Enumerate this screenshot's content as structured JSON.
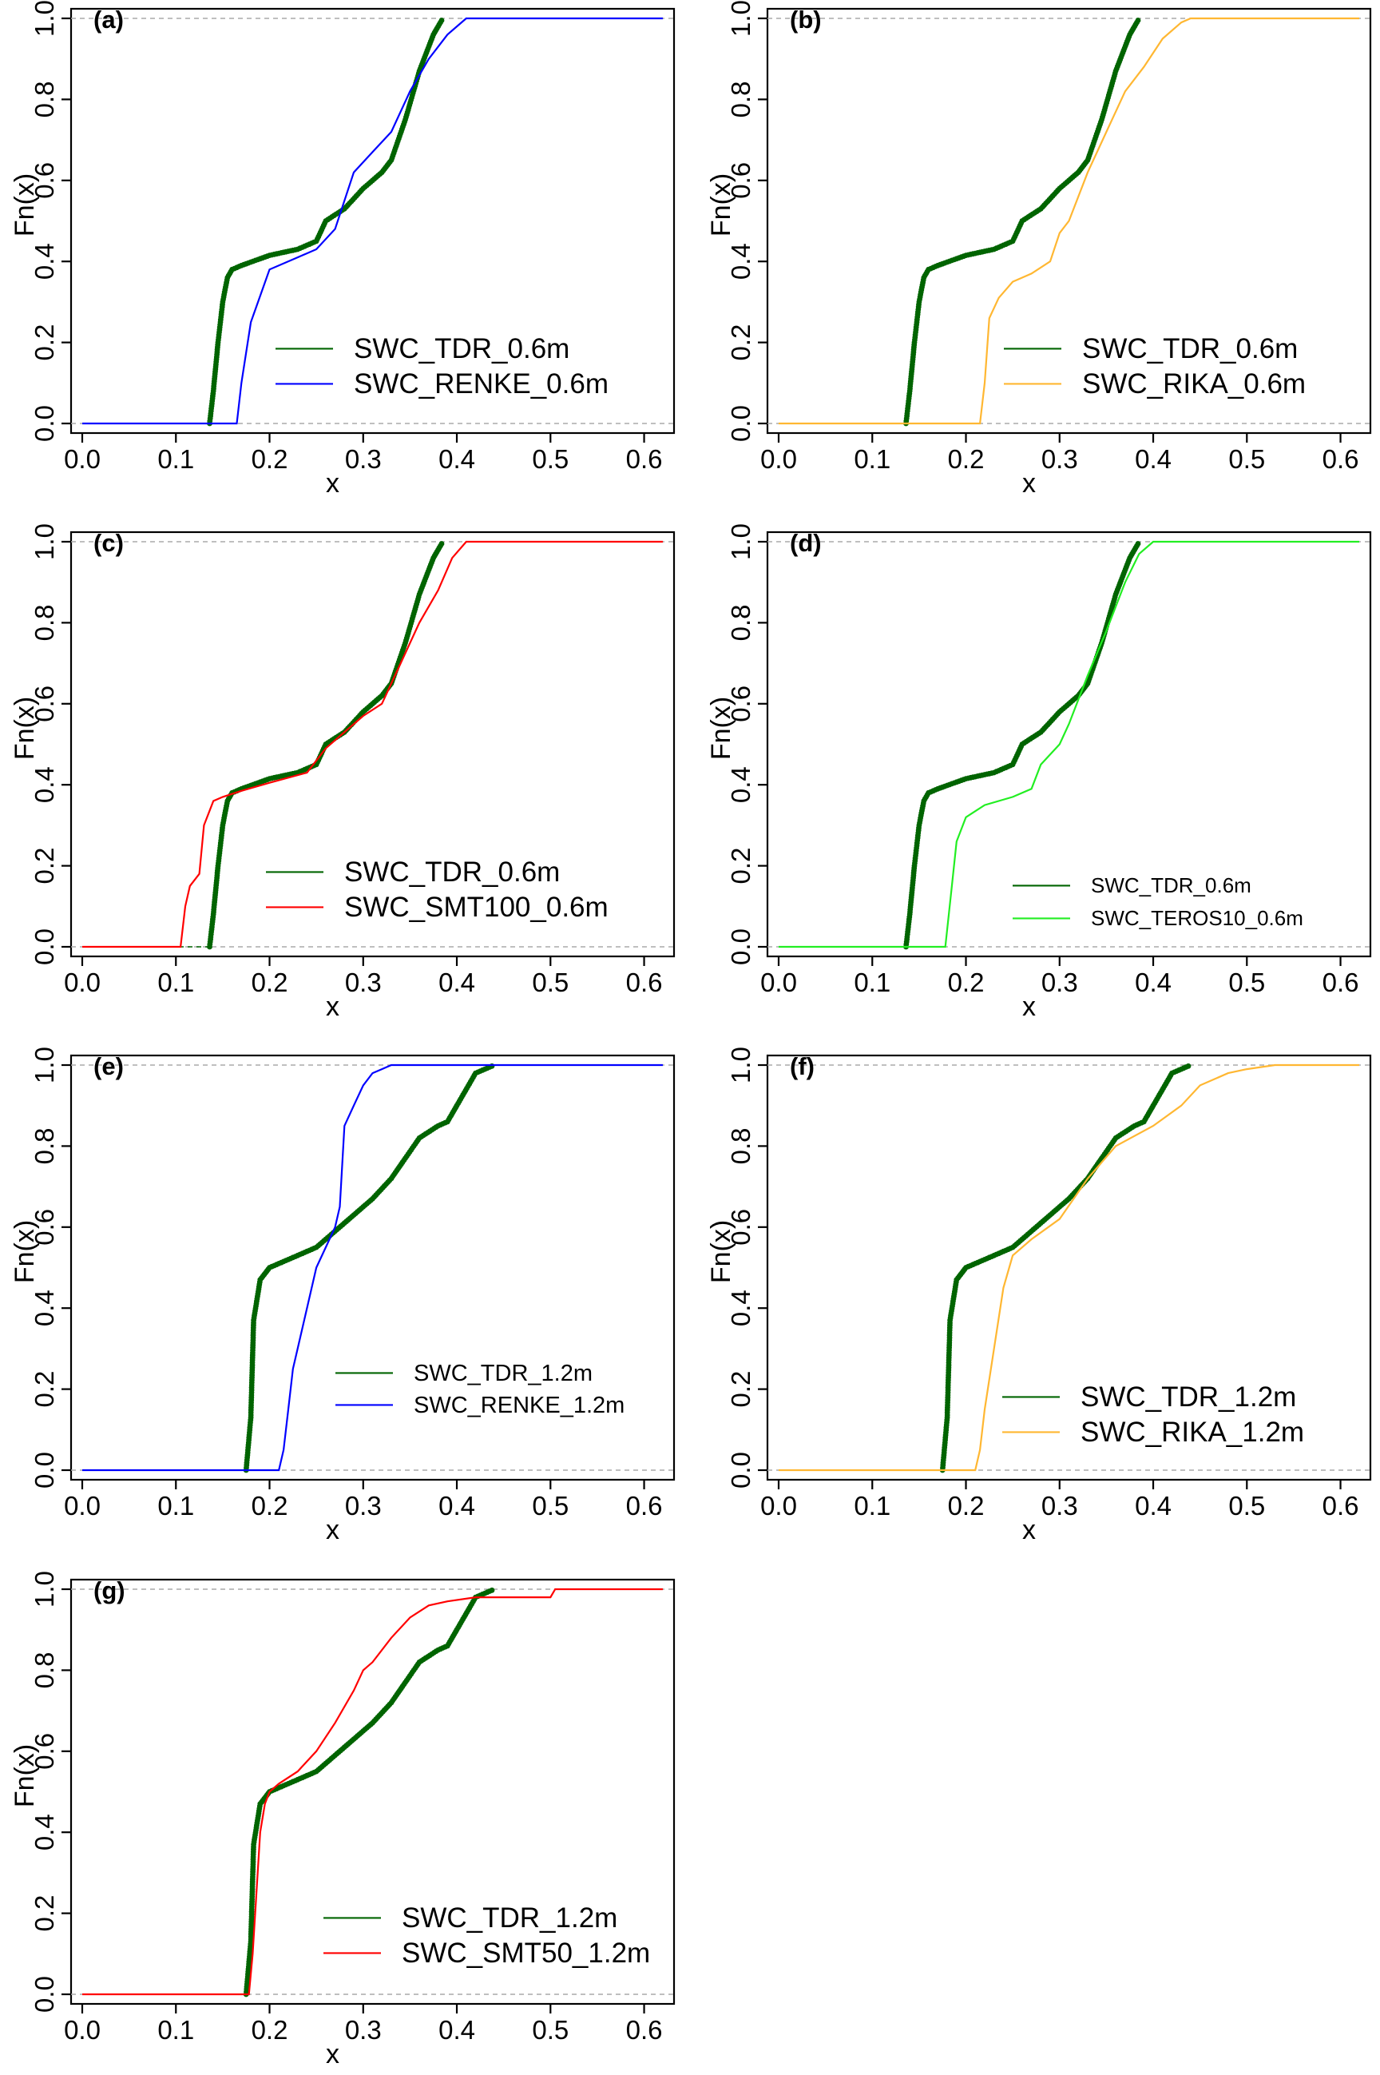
{
  "x_label": "x",
  "y_label": "Fn(x)",
  "colors": {
    "tdr": "#006400",
    "renke": "#0000ff",
    "rika": "#ffb732",
    "smt": "#ff0000",
    "teros": "#22ee22"
  },
  "chart_data": [
    {
      "type": "line",
      "label": "(a)",
      "xlim": [
        0.0,
        0.62
      ],
      "ylim": [
        0.0,
        1.0
      ],
      "x_ticks": [
        "0.0",
        "0.1",
        "0.2",
        "0.3",
        "0.4",
        "0.5",
        "0.6"
      ],
      "y_ticks": [
        "0.0",
        "0.2",
        "0.4",
        "0.6",
        "0.8",
        "1.0"
      ],
      "series": [
        {
          "name": "SWC_TDR_0.6m",
          "color": "#006400",
          "style": "dots",
          "x": [
            0.0,
            0.136,
            0.14,
            0.145,
            0.15,
            0.155,
            0.16,
            0.17,
            0.2,
            0.23,
            0.25,
            0.26,
            0.28,
            0.3,
            0.32,
            0.33,
            0.345,
            0.36,
            0.375,
            0.385,
            0.4,
            0.62
          ],
          "y": [
            0.0,
            0.0,
            0.08,
            0.2,
            0.3,
            0.36,
            0.38,
            0.39,
            0.415,
            0.43,
            0.45,
            0.5,
            0.53,
            0.58,
            0.62,
            0.65,
            0.75,
            0.87,
            0.96,
            1.0,
            1.0,
            1.0
          ]
        },
        {
          "name": "SWC_RENKE_0.6m",
          "color": "#0000ff",
          "style": "line",
          "x": [
            0.0,
            0.165,
            0.17,
            0.18,
            0.2,
            0.23,
            0.25,
            0.27,
            0.29,
            0.31,
            0.33,
            0.35,
            0.37,
            0.39,
            0.41,
            0.62
          ],
          "y": [
            0.0,
            0.0,
            0.1,
            0.25,
            0.38,
            0.41,
            0.43,
            0.48,
            0.62,
            0.67,
            0.72,
            0.82,
            0.9,
            0.96,
            1.0,
            1.0
          ]
        }
      ]
    },
    {
      "type": "line",
      "label": "(b)",
      "xlim": [
        0.0,
        0.62
      ],
      "ylim": [
        0.0,
        1.0
      ],
      "x_ticks": [
        "0.0",
        "0.1",
        "0.2",
        "0.3",
        "0.4",
        "0.5",
        "0.6"
      ],
      "y_ticks": [
        "0.0",
        "0.2",
        "0.4",
        "0.6",
        "0.8",
        "1.0"
      ],
      "series": [
        {
          "name": "SWC_TDR_0.6m",
          "color": "#006400",
          "style": "dots",
          "x": [
            0.0,
            0.136,
            0.14,
            0.145,
            0.15,
            0.155,
            0.16,
            0.17,
            0.2,
            0.23,
            0.25,
            0.26,
            0.28,
            0.3,
            0.32,
            0.33,
            0.345,
            0.36,
            0.375,
            0.385,
            0.4,
            0.62
          ],
          "y": [
            0.0,
            0.0,
            0.08,
            0.2,
            0.3,
            0.36,
            0.38,
            0.39,
            0.415,
            0.43,
            0.45,
            0.5,
            0.53,
            0.58,
            0.62,
            0.65,
            0.75,
            0.87,
            0.96,
            1.0,
            1.0,
            1.0
          ]
        },
        {
          "name": "SWC_RIKA_0.6m",
          "color": "#ffb732",
          "style": "line",
          "x": [
            0.0,
            0.215,
            0.22,
            0.225,
            0.235,
            0.25,
            0.27,
            0.29,
            0.3,
            0.31,
            0.33,
            0.35,
            0.37,
            0.39,
            0.41,
            0.43,
            0.44,
            0.62
          ],
          "y": [
            0.0,
            0.0,
            0.1,
            0.26,
            0.31,
            0.35,
            0.37,
            0.4,
            0.47,
            0.5,
            0.62,
            0.72,
            0.82,
            0.88,
            0.95,
            0.99,
            1.0,
            1.0
          ]
        }
      ]
    },
    {
      "type": "line",
      "label": "(c)",
      "xlim": [
        0.0,
        0.62
      ],
      "ylim": [
        0.0,
        1.0
      ],
      "x_ticks": [
        "0.0",
        "0.1",
        "0.2",
        "0.3",
        "0.4",
        "0.5",
        "0.6"
      ],
      "y_ticks": [
        "0.0",
        "0.2",
        "0.4",
        "0.6",
        "0.8",
        "1.0"
      ],
      "series": [
        {
          "name": "SWC_TDR_0.6m",
          "color": "#006400",
          "style": "dots",
          "x": [
            0.0,
            0.136,
            0.14,
            0.145,
            0.15,
            0.155,
            0.16,
            0.17,
            0.2,
            0.23,
            0.25,
            0.26,
            0.28,
            0.3,
            0.32,
            0.33,
            0.345,
            0.36,
            0.375,
            0.385,
            0.4,
            0.62
          ],
          "y": [
            0.0,
            0.0,
            0.08,
            0.2,
            0.3,
            0.36,
            0.38,
            0.39,
            0.415,
            0.43,
            0.45,
            0.5,
            0.53,
            0.58,
            0.62,
            0.65,
            0.75,
            0.87,
            0.96,
            1.0,
            1.0,
            1.0
          ]
        },
        {
          "name": "SWC_SMT100_0.6m",
          "color": "#ff0000",
          "style": "line",
          "x": [
            0.0,
            0.105,
            0.11,
            0.115,
            0.125,
            0.13,
            0.14,
            0.15,
            0.17,
            0.2,
            0.24,
            0.26,
            0.28,
            0.3,
            0.32,
            0.34,
            0.36,
            0.38,
            0.395,
            0.41,
            0.62
          ],
          "y": [
            0.0,
            0.0,
            0.1,
            0.15,
            0.18,
            0.3,
            0.36,
            0.37,
            0.385,
            0.405,
            0.43,
            0.49,
            0.53,
            0.57,
            0.6,
            0.7,
            0.8,
            0.88,
            0.96,
            1.0,
            1.0
          ]
        }
      ]
    },
    {
      "type": "line",
      "label": "(d)",
      "xlim": [
        0.0,
        0.62
      ],
      "ylim": [
        0.0,
        1.0
      ],
      "x_ticks": [
        "0.0",
        "0.1",
        "0.2",
        "0.3",
        "0.4",
        "0.5",
        "0.6"
      ],
      "y_ticks": [
        "0.0",
        "0.2",
        "0.4",
        "0.6",
        "0.8",
        "1.0"
      ],
      "series": [
        {
          "name": "SWC_TDR_0.6m",
          "color": "#006400",
          "style": "dots",
          "x": [
            0.0,
            0.136,
            0.14,
            0.145,
            0.15,
            0.155,
            0.16,
            0.17,
            0.2,
            0.23,
            0.25,
            0.26,
            0.28,
            0.3,
            0.32,
            0.33,
            0.345,
            0.36,
            0.375,
            0.385,
            0.4,
            0.62
          ],
          "y": [
            0.0,
            0.0,
            0.08,
            0.2,
            0.3,
            0.36,
            0.38,
            0.39,
            0.415,
            0.43,
            0.45,
            0.5,
            0.53,
            0.58,
            0.62,
            0.65,
            0.75,
            0.87,
            0.96,
            1.0,
            1.0,
            1.0
          ]
        },
        {
          "name": "SWC_TEROS10_0.6m",
          "color": "#22ee22",
          "style": "line",
          "x": [
            0.0,
            0.178,
            0.185,
            0.19,
            0.2,
            0.22,
            0.25,
            0.27,
            0.28,
            0.3,
            0.31,
            0.33,
            0.35,
            0.37,
            0.385,
            0.4,
            0.62
          ],
          "y": [
            0.0,
            0.0,
            0.15,
            0.26,
            0.32,
            0.35,
            0.37,
            0.39,
            0.45,
            0.5,
            0.55,
            0.67,
            0.78,
            0.9,
            0.97,
            1.0,
            1.0
          ]
        }
      ]
    },
    {
      "type": "line",
      "label": "(e)",
      "xlim": [
        0.0,
        0.62
      ],
      "ylim": [
        0.0,
        1.0
      ],
      "x_ticks": [
        "0.0",
        "0.1",
        "0.2",
        "0.3",
        "0.4",
        "0.5",
        "0.6"
      ],
      "y_ticks": [
        "0.0",
        "0.2",
        "0.4",
        "0.6",
        "0.8",
        "1.0"
      ],
      "series": [
        {
          "name": "SWC_TDR_1.2m",
          "color": "#006400",
          "style": "dots",
          "x": [
            0.0,
            0.175,
            0.18,
            0.183,
            0.19,
            0.2,
            0.22,
            0.25,
            0.27,
            0.29,
            0.31,
            0.33,
            0.36,
            0.38,
            0.39,
            0.4,
            0.42,
            0.44,
            0.62
          ],
          "y": [
            0.0,
            0.0,
            0.13,
            0.37,
            0.47,
            0.5,
            0.52,
            0.55,
            0.59,
            0.63,
            0.67,
            0.72,
            0.82,
            0.85,
            0.86,
            0.9,
            0.98,
            1.0,
            1.0
          ]
        },
        {
          "name": "SWC_RENKE_1.2m",
          "color": "#0000ff",
          "style": "line",
          "x": [
            0.0,
            0.21,
            0.215,
            0.22,
            0.225,
            0.23,
            0.24,
            0.25,
            0.26,
            0.27,
            0.275,
            0.28,
            0.29,
            0.3,
            0.31,
            0.32,
            0.33,
            0.34,
            0.62
          ],
          "y": [
            0.0,
            0.0,
            0.05,
            0.15,
            0.25,
            0.3,
            0.4,
            0.5,
            0.55,
            0.6,
            0.65,
            0.85,
            0.9,
            0.95,
            0.98,
            0.99,
            1.0,
            1.0,
            1.0
          ]
        }
      ]
    },
    {
      "type": "line",
      "label": "(f)",
      "xlim": [
        0.0,
        0.62
      ],
      "ylim": [
        0.0,
        1.0
      ],
      "x_ticks": [
        "0.0",
        "0.1",
        "0.2",
        "0.3",
        "0.4",
        "0.5",
        "0.6"
      ],
      "y_ticks": [
        "0.0",
        "0.2",
        "0.4",
        "0.6",
        "0.8",
        "1.0"
      ],
      "series": [
        {
          "name": "SWC_TDR_1.2m",
          "color": "#006400",
          "style": "dots",
          "x": [
            0.0,
            0.175,
            0.18,
            0.183,
            0.19,
            0.2,
            0.22,
            0.25,
            0.27,
            0.29,
            0.31,
            0.33,
            0.36,
            0.38,
            0.39,
            0.4,
            0.42,
            0.44,
            0.62
          ],
          "y": [
            0.0,
            0.0,
            0.13,
            0.37,
            0.47,
            0.5,
            0.52,
            0.55,
            0.59,
            0.63,
            0.67,
            0.72,
            0.82,
            0.85,
            0.86,
            0.9,
            0.98,
            1.0,
            1.0
          ]
        },
        {
          "name": "SWC_RIKA_1.2m",
          "color": "#ffb732",
          "style": "line",
          "x": [
            0.0,
            0.21,
            0.215,
            0.22,
            0.23,
            0.24,
            0.25,
            0.27,
            0.3,
            0.33,
            0.36,
            0.4,
            0.43,
            0.45,
            0.48,
            0.5,
            0.53,
            0.62
          ],
          "y": [
            0.0,
            0.0,
            0.05,
            0.15,
            0.3,
            0.45,
            0.53,
            0.57,
            0.62,
            0.72,
            0.8,
            0.85,
            0.9,
            0.95,
            0.98,
            0.99,
            1.0,
            1.0
          ]
        }
      ]
    },
    {
      "type": "line",
      "label": "(g)",
      "xlim": [
        0.0,
        0.62
      ],
      "ylim": [
        0.0,
        1.0
      ],
      "x_ticks": [
        "0.0",
        "0.1",
        "0.2",
        "0.3",
        "0.4",
        "0.5",
        "0.6"
      ],
      "y_ticks": [
        "0.0",
        "0.2",
        "0.4",
        "0.6",
        "0.8",
        "1.0"
      ],
      "series": [
        {
          "name": "SWC_TDR_1.2m",
          "color": "#006400",
          "style": "dots",
          "x": [
            0.0,
            0.175,
            0.18,
            0.183,
            0.19,
            0.2,
            0.22,
            0.25,
            0.27,
            0.29,
            0.31,
            0.33,
            0.36,
            0.38,
            0.39,
            0.4,
            0.42,
            0.44,
            0.62
          ],
          "y": [
            0.0,
            0.0,
            0.13,
            0.37,
            0.47,
            0.5,
            0.52,
            0.55,
            0.59,
            0.63,
            0.67,
            0.72,
            0.82,
            0.85,
            0.86,
            0.9,
            0.98,
            1.0,
            1.0
          ]
        },
        {
          "name": "SWC_SMT50_1.2m",
          "color": "#ff0000",
          "style": "line",
          "x": [
            0.0,
            0.178,
            0.182,
            0.186,
            0.19,
            0.195,
            0.2,
            0.21,
            0.23,
            0.25,
            0.27,
            0.29,
            0.3,
            0.31,
            0.33,
            0.35,
            0.37,
            0.39,
            0.42,
            0.5,
            0.505,
            0.62
          ],
          "y": [
            0.0,
            0.0,
            0.1,
            0.25,
            0.4,
            0.47,
            0.5,
            0.52,
            0.55,
            0.6,
            0.67,
            0.75,
            0.8,
            0.82,
            0.88,
            0.93,
            0.96,
            0.97,
            0.98,
            0.98,
            1.0,
            1.0
          ]
        }
      ]
    }
  ]
}
